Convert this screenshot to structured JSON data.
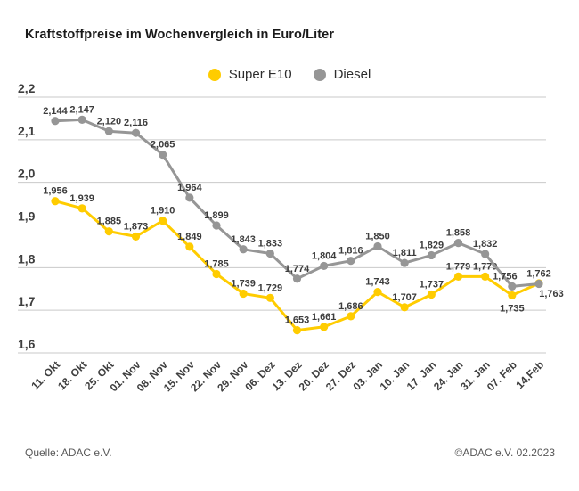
{
  "footer": {
    "source": "Quelle: ADAC e.V.",
    "copyright": "©ADAC e.V. 02.2023"
  },
  "colors": {
    "super_e10": "#FFCC00",
    "diesel": "#969696",
    "grid": "#C9C9C9",
    "title_text": "#1A1A1A",
    "label_text": "#3C3C3C",
    "footer_text": "#575757"
  },
  "chart_data": {
    "type": "line",
    "title": "Kraftstoffpreise im Wochenvergleich in Euro/Liter",
    "categories": [
      "11. Okt",
      "18. Okt",
      "25. Okt",
      "01. Nov",
      "08. Nov",
      "15. Nov",
      "22. Nov",
      "29. Nov",
      "06. Dez",
      "13. Dez",
      "20. Dez",
      "27. Dez",
      "03. Jan",
      "10. Jan",
      "17. Jan",
      "24. Jan",
      "31. Jan",
      "07. Feb",
      "14.Feb"
    ],
    "series": [
      {
        "name": "Super E10",
        "color": "#FFCC00",
        "values": [
          1.956,
          1.939,
          1.885,
          1.873,
          1.91,
          1.849,
          1.785,
          1.739,
          1.729,
          1.653,
          1.661,
          1.686,
          1.743,
          1.707,
          1.737,
          1.779,
          1.779,
          1.735,
          1.763
        ]
      },
      {
        "name": "Diesel",
        "color": "#969696",
        "values": [
          2.144,
          2.147,
          2.12,
          2.116,
          2.065,
          1.964,
          1.899,
          1.843,
          1.833,
          1.774,
          1.804,
          1.816,
          1.85,
          1.811,
          1.829,
          1.858,
          1.832,
          1.756,
          1.762
        ]
      }
    ],
    "ylim": [
      1.6,
      2.2
    ],
    "ytick_step": 0.1,
    "decimal_separator": ",",
    "value_decimals": 3,
    "grid": true,
    "legend_position": "top-center",
    "xlabel": "",
    "ylabel": ""
  }
}
